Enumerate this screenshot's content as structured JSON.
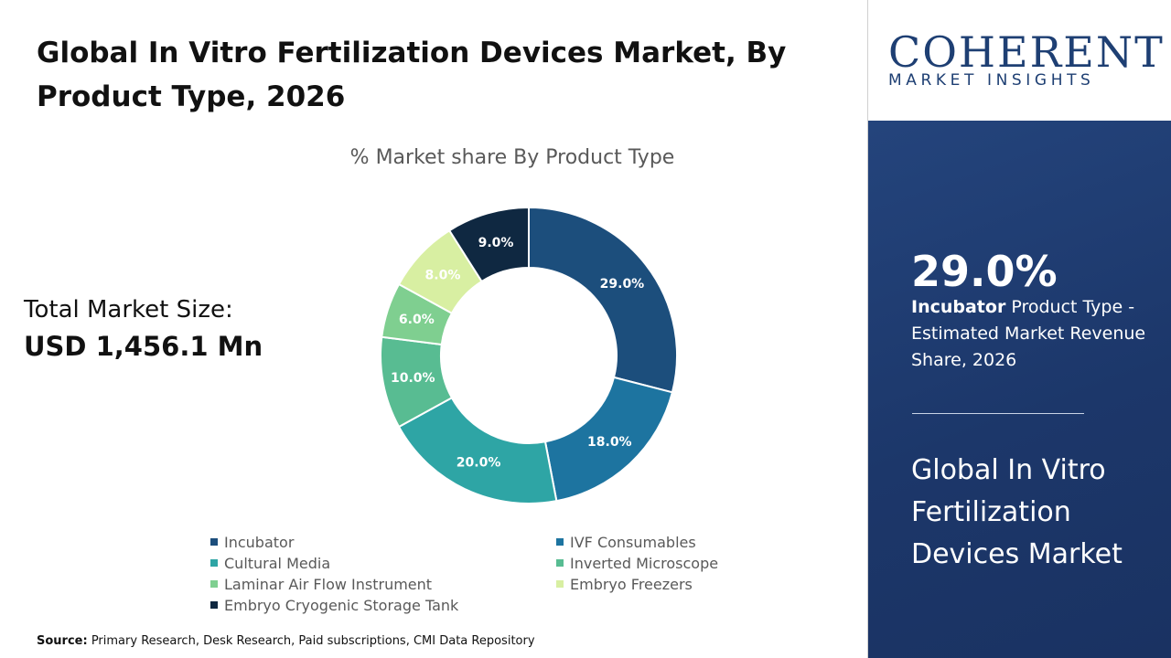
{
  "header": {
    "title": "Global In Vitro Fertilization Devices Market, By Product Type, 2026"
  },
  "market_size": {
    "label": "Total Market Size:",
    "value": "USD 1,456.1 Mn"
  },
  "colors": {
    "incubator": "#1c4e7c",
    "ivf_consumables": "#1d74a0",
    "cultural_media": "#2ea5a5",
    "inverted_microscope": "#58bc92",
    "laminar_air_flow": "#7fcf90",
    "embryo_freezers": "#d8efa2",
    "embryo_cryogenic": "#0f2841",
    "panel_blue": "#1e3a6e"
  },
  "chart_data": {
    "type": "pie",
    "variant": "donut",
    "title": "% Market share By Product Type",
    "categories": [
      "Incubator",
      "IVF Consumables",
      "Cultural Media",
      "Inverted Microscope",
      "Laminar Air Flow Instrument",
      "Embryo Freezers",
      "Embryo Cryogenic Storage Tank"
    ],
    "values": [
      29.0,
      18.0,
      20.0,
      10.0,
      6.0,
      8.0,
      9.0
    ],
    "labels": [
      "29.0%",
      "18.0%",
      "20.0%",
      "10.0%",
      "6.0%",
      "8.0%",
      "9.0%"
    ],
    "colors": [
      "#1c4e7c",
      "#1d74a0",
      "#2ea5a5",
      "#58bc92",
      "#7fcf90",
      "#d8efa2",
      "#0f2841"
    ],
    "label_colors": [
      "#ffffff",
      "#ffffff",
      "#ffffff",
      "#ffffff",
      "#ffffff",
      "#ffffff",
      "#ffffff"
    ],
    "legend_position": "bottom"
  },
  "source": {
    "label": "Source:",
    "text": " Primary Research, Desk Research, Paid subscriptions, CMI Data Repository"
  },
  "logo": {
    "main": "COHERENT",
    "sub": "MARKET INSIGHTS"
  },
  "highlight": {
    "percentage": "29.0%",
    "product": "Incubator",
    "description": " Product Type - Estimated Market Revenue Share, 2026"
  },
  "market_name": "Global In Vitro Fertilization Devices Market"
}
